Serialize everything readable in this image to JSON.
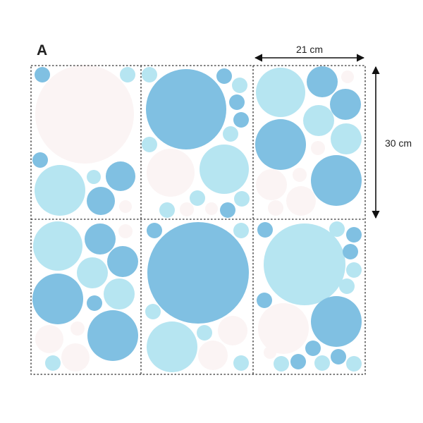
{
  "label": "A",
  "dimensions": {
    "width": "21 cm",
    "height": "30 cm"
  },
  "colors": {
    "dark_blue": "#80c0e2",
    "light_blue": "#b6e5f1",
    "blush": "#fbf4f4",
    "border": "#333333",
    "text": "#222222",
    "background": "#ffffff"
  }
}
